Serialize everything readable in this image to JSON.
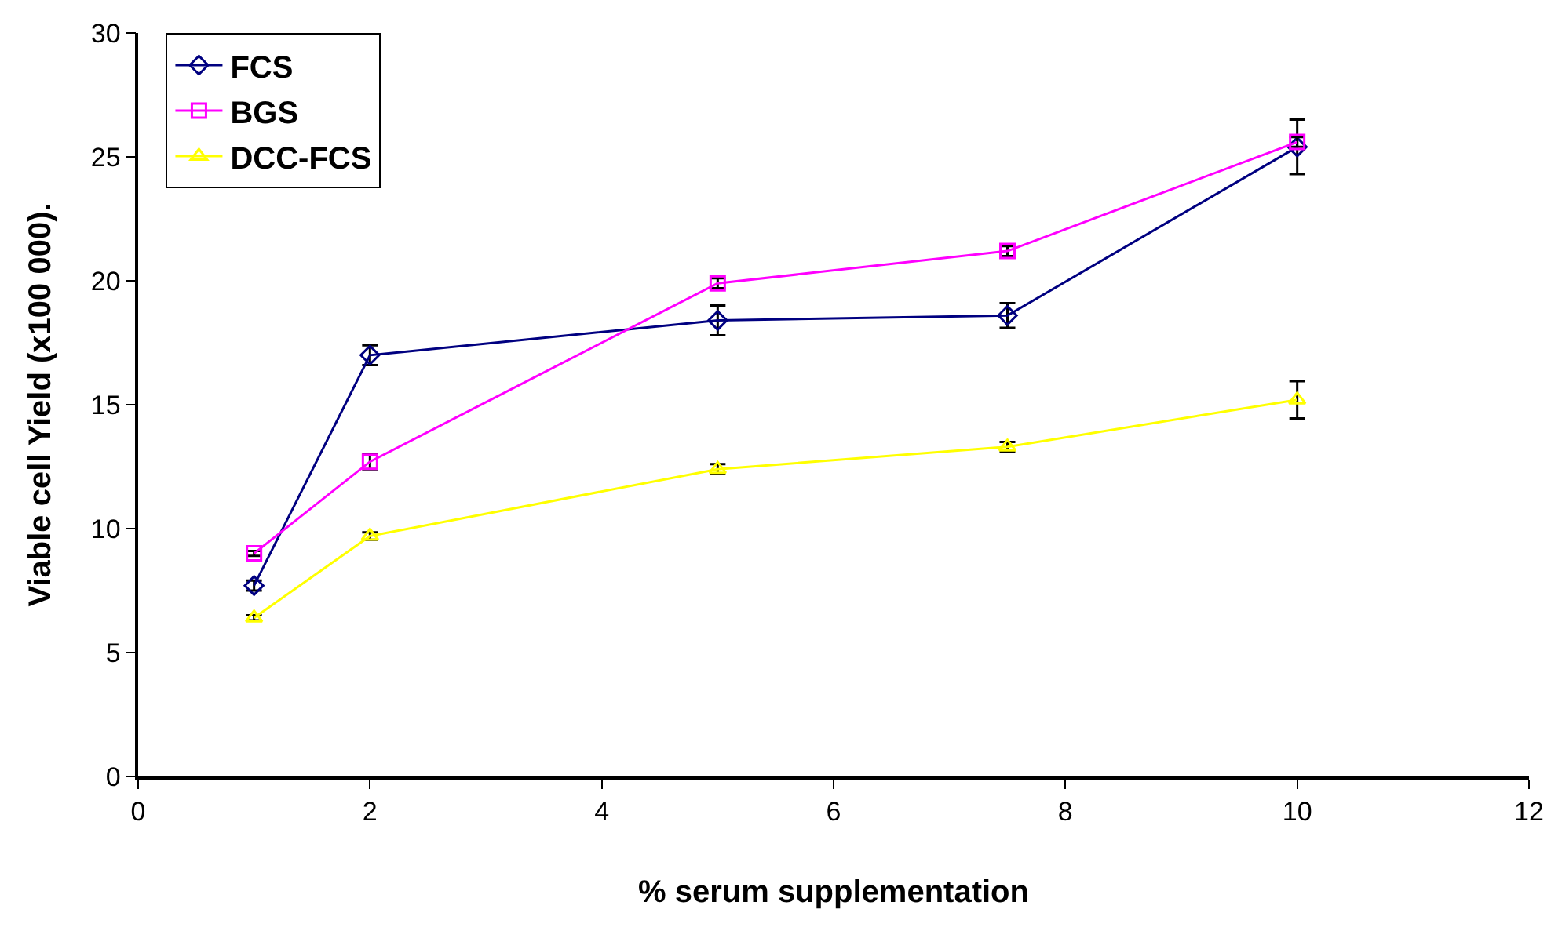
{
  "chart_data": {
    "type": "line",
    "xlabel": "% serum supplementation",
    "ylabel": "Viable cell Yield (x100 000).",
    "x": [
      1,
      2,
      5,
      7.5,
      10
    ],
    "series": [
      {
        "name": "FCS",
        "color": "#000080",
        "marker": "diamond",
        "values": [
          7.7,
          17.0,
          18.4,
          18.6,
          25.4
        ],
        "errors": [
          0.2,
          0.4,
          0.6,
          0.5,
          1.1
        ]
      },
      {
        "name": "BGS",
        "color": "#ff00ff",
        "marker": "square",
        "values": [
          9.0,
          12.7,
          19.9,
          21.2,
          25.6
        ],
        "errors": [
          0.1,
          0.3,
          0.2,
          0.2,
          0.2
        ]
      },
      {
        "name": "DCC-FCS",
        "color": "#ffff00",
        "marker": "triangle",
        "values": [
          6.4,
          9.7,
          12.4,
          13.3,
          15.2
        ],
        "errors": [
          0.1,
          0.15,
          0.2,
          0.2,
          0.75
        ]
      }
    ],
    "xlim": [
      0,
      12
    ],
    "xticks": [
      0,
      2,
      4,
      6,
      8,
      10,
      12
    ],
    "ylim": [
      0,
      30
    ],
    "yticks": [
      0,
      5,
      10,
      15,
      20,
      25,
      30
    ],
    "legend": "top left"
  }
}
